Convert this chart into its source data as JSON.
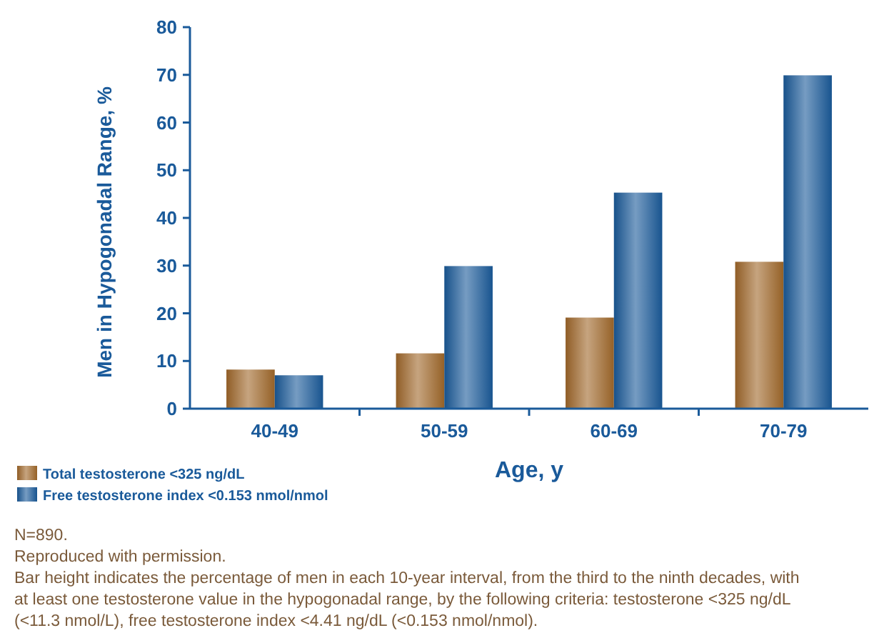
{
  "chart_data": {
    "type": "bar",
    "categories": [
      "40-49",
      "50-59",
      "60-69",
      "70-79"
    ],
    "series": [
      {
        "name": "Total testosterone <325 ng/dL",
        "color": "#a0682a",
        "values": [
          8.2,
          11.6,
          19.1,
          30.8
        ]
      },
      {
        "name": "Free testosterone index <0.153 nmol/nmol",
        "color": "#1a5a9a",
        "values": [
          7,
          29.9,
          45.3,
          69.9
        ]
      }
    ],
    "xlabel": "Age, y",
    "ylabel": "Men in Hypogonadal Range, %",
    "ylim": [
      0,
      80
    ],
    "yticks": [
      0,
      10,
      20,
      30,
      40,
      50,
      60,
      70,
      80
    ],
    "grid": false,
    "legend": "bottom left",
    "annotations": [
      "N=890.",
      "Reproduced with permission.",
      "Bar height indicates the percentage of men in each 10-year interval, from the third to the ninth decades, with at least one testosterone value in the hypogonadal range, by the following criteria: testosterone <325 ng/dL (<11.3 nmol/L), free testosterone index <4.41 ng/dL (<0.153 nmol/nmol)."
    ]
  }
}
